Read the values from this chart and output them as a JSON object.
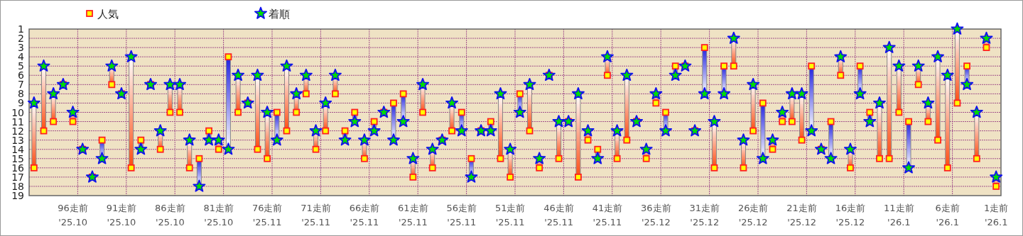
{
  "chart_data": {
    "type": "scatter",
    "categories": [
      null,
      null,
      null,
      null,
      "96走前\n'25.10",
      null,
      null,
      null,
      null,
      "91走前\n'25.10",
      null,
      null,
      null,
      null,
      "86走前\n'25.10",
      null,
      null,
      null,
      null,
      "81走前\n'25.10",
      null,
      null,
      null,
      null,
      "76走前\n'25.11",
      null,
      null,
      null,
      null,
      "71走前\n'25.11",
      null,
      null,
      null,
      null,
      "66走前\n'25.11",
      null,
      null,
      null,
      null,
      "61走前\n'25.11",
      null,
      null,
      null,
      null,
      "56走前\n'25.11",
      null,
      null,
      null,
      null,
      "51走前\n'25.11",
      null,
      null,
      null,
      null,
      "46走前\n'25.11",
      null,
      null,
      null,
      null,
      "41走前\n'25.11",
      null,
      null,
      null,
      null,
      "36走前\n'25.12",
      null,
      null,
      null,
      null,
      "31走前\n'25.12",
      null,
      null,
      null,
      null,
      "26走前\n'25.12",
      null,
      null,
      null,
      null,
      "21走前\n'25.12",
      null,
      null,
      null,
      null,
      "16走前\n'25.12",
      null,
      null,
      null,
      null,
      "11走前\n'26.1",
      null,
      null,
      null,
      null,
      "6走前\n'26.1",
      null,
      null,
      null,
      null,
      "1走前\n'26.1"
    ],
    "series": [
      {
        "name": "人気",
        "color": "#ffff00",
        "marker": "square",
        "values": [
          16,
          12,
          11,
          7,
          11,
          14,
          17,
          13,
          7,
          8,
          16,
          13,
          7,
          14,
          10,
          10,
          16,
          15,
          12,
          14,
          4,
          10,
          9,
          14,
          15,
          10,
          12,
          10,
          8,
          14,
          12,
          8,
          12,
          10,
          15,
          11,
          10,
          9,
          8,
          17,
          10,
          16,
          13,
          12,
          10,
          15,
          12,
          11,
          15,
          17,
          8,
          12,
          16,
          6,
          15,
          11,
          17,
          13,
          14,
          6,
          15,
          13,
          11,
          15,
          9,
          10,
          5,
          5,
          12,
          3,
          16,
          5,
          5,
          16,
          12,
          9,
          14,
          11,
          11,
          13,
          5,
          14,
          11,
          6,
          16,
          5,
          10,
          15,
          15,
          10,
          11,
          7,
          11,
          13,
          16,
          9,
          5,
          15,
          3,
          18
        ]
      },
      {
        "name": "着順",
        "color": "#00dd00",
        "marker": "star",
        "values": [
          9,
          5,
          8,
          7,
          10,
          14,
          17,
          15,
          5,
          8,
          4,
          14,
          7,
          12,
          7,
          7,
          13,
          18,
          13,
          13,
          14,
          6,
          9,
          6,
          10,
          13,
          5,
          8,
          6,
          12,
          9,
          6,
          13,
          11,
          13,
          12,
          10,
          13,
          11,
          15,
          7,
          14,
          13,
          9,
          12,
          17,
          12,
          12,
          8,
          14,
          10,
          7,
          15,
          6,
          11,
          11,
          8,
          12,
          15,
          4,
          12,
          6,
          11,
          14,
          8,
          12,
          6,
          5,
          12,
          8,
          11,
          8,
          2,
          13,
          7,
          15,
          13,
          10,
          8,
          8,
          12,
          14,
          15,
          4,
          14,
          8,
          11,
          9,
          3,
          5,
          16,
          5,
          9,
          4,
          6,
          1,
          7,
          10,
          2,
          17
        ]
      }
    ],
    "ylim": [
      19,
      1
    ],
    "yticks": [
      1,
      2,
      3,
      4,
      5,
      6,
      7,
      8,
      9,
      10,
      11,
      12,
      13,
      14,
      15,
      16,
      17,
      18,
      19
    ],
    "grid": true,
    "legend": "top left"
  }
}
